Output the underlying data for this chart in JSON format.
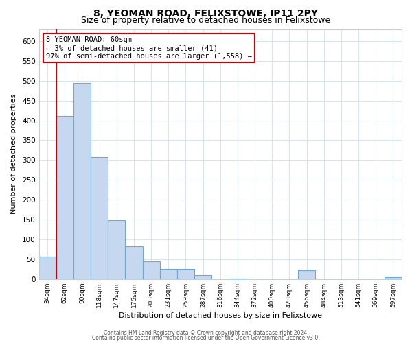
{
  "title": "8, YEOMAN ROAD, FELIXSTOWE, IP11 2PY",
  "subtitle": "Size of property relative to detached houses in Felixstowe",
  "xlabel": "Distribution of detached houses by size in Felixstowe",
  "ylabel": "Number of detached properties",
  "bin_labels": [
    "34sqm",
    "62sqm",
    "90sqm",
    "118sqm",
    "147sqm",
    "175sqm",
    "203sqm",
    "231sqm",
    "259sqm",
    "287sqm",
    "316sqm",
    "344sqm",
    "372sqm",
    "400sqm",
    "428sqm",
    "456sqm",
    "484sqm",
    "513sqm",
    "541sqm",
    "569sqm",
    "597sqm"
  ],
  "bar_heights": [
    57,
    411,
    494,
    307,
    149,
    82,
    44,
    25,
    25,
    10,
    0,
    2,
    0,
    0,
    0,
    22,
    0,
    0,
    0,
    0,
    5
  ],
  "bar_color": "#c5d8f0",
  "bar_edge_color": "#6aaad4",
  "marker_bin_index": 1,
  "marker_color": "#cc0000",
  "annotation_title": "8 YEOMAN ROAD: 60sqm",
  "annotation_line1": "← 3% of detached houses are smaller (41)",
  "annotation_line2": "97% of semi-detached houses are larger (1,558) →",
  "annotation_border_color": "#cc0000",
  "ylim": [
    0,
    630
  ],
  "yticks": [
    0,
    50,
    100,
    150,
    200,
    250,
    300,
    350,
    400,
    450,
    500,
    550,
    600
  ],
  "footer1": "Contains HM Land Registry data © Crown copyright and database right 2024.",
  "footer2": "Contains public sector information licensed under the Open Government Licence v3.0.",
  "bg_color": "#ffffff",
  "plot_bg_color": "#ffffff",
  "grid_color": "#d8e4f0",
  "title_fontsize": 10,
  "subtitle_fontsize": 9
}
